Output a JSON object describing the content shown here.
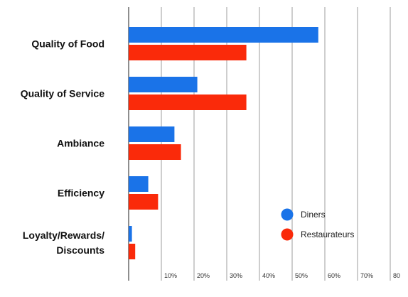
{
  "chart_data": {
    "type": "bar",
    "orientation": "horizontal",
    "categories": [
      [
        "Quality of Food"
      ],
      [
        "Quality of Service"
      ],
      [
        "Ambiance"
      ],
      [
        "Efficiency"
      ],
      [
        "Loyalty/Rewards/",
        "Discounts"
      ]
    ],
    "series": [
      {
        "name": "Diners",
        "color": "#1a73e8",
        "values": [
          58,
          21,
          14,
          6,
          1
        ]
      },
      {
        "name": "Restaurateurs",
        "color": "#fa2a0a",
        "values": [
          36,
          36,
          16,
          9,
          2
        ]
      }
    ],
    "x_ticks": [
      {
        "value": 10,
        "label": "10%"
      },
      {
        "value": 20,
        "label": "20%"
      },
      {
        "value": 30,
        "label": "30%"
      },
      {
        "value": 40,
        "label": "40%"
      },
      {
        "value": 50,
        "label": "50%"
      },
      {
        "value": 60,
        "label": "60%"
      },
      {
        "value": 70,
        "label": "70%"
      },
      {
        "value": 80,
        "label": "80"
      }
    ],
    "xlim": [
      0,
      80
    ],
    "grid": true,
    "legend_position": "bottom-right",
    "title": "",
    "xlabel": "",
    "ylabel": ""
  }
}
